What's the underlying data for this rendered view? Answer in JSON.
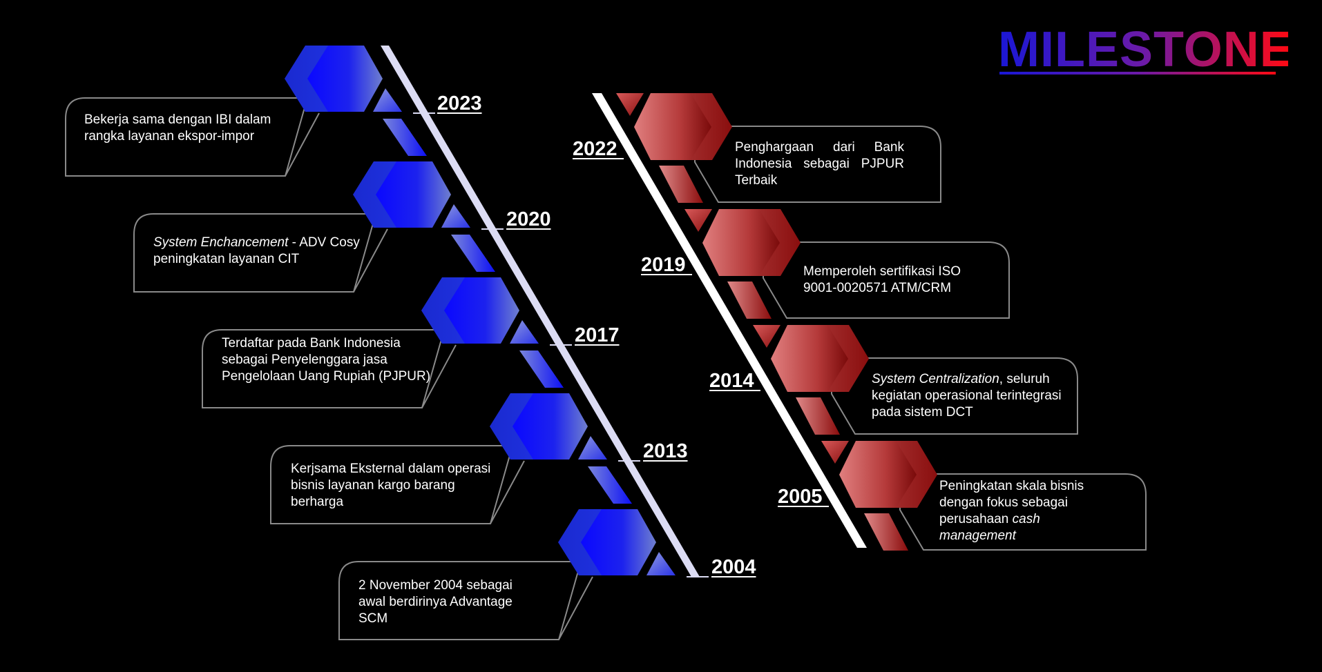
{
  "title": "MILESTONE",
  "colors": {
    "background": "#000000",
    "left_accent": "#1414f5",
    "right_accent": "#8b0d0d",
    "title_gradient": [
      "#1a17d6",
      "#ff0a14"
    ],
    "box_border": "#8a8a8a"
  },
  "left_timeline": [
    {
      "year": "2023",
      "text": "Bekerja sama dengan IBI dalam rangka layanan ekspor-impor"
    },
    {
      "year": "2020",
      "text_italic": "System Enchancement",
      "text": " - ADV Cosy peningkatan layanan CIT"
    },
    {
      "year": "2017",
      "text": "Terdaftar pada Bank Indonesia sebagai Penyelenggara jasa Pengelolaan Uang Rupiah (PJPUR)"
    },
    {
      "year": "2013",
      "text": "Kerjsama Eksternal dalam operasi bisnis layanan kargo barang berharga"
    },
    {
      "year": "2004",
      "text": "2 November 2004 sebagai awal berdirinya Advantage SCM"
    }
  ],
  "right_timeline": [
    {
      "year": "2022",
      "text": "Penghargaan dari Bank Indonesia sebagai PJPUR Terbaik"
    },
    {
      "year": "2019",
      "text": "Memperoleh sertifikasi ISO 9001-0020571 ATM/CRM"
    },
    {
      "year": "2014",
      "text_italic": "System Centralization",
      "text": ", seluruh kegiatan operasional terintegrasi pada sistem DCT"
    },
    {
      "year": "2005",
      "text": "Peningkatan skala bisnis dengan fokus sebagai perusahaan ",
      "text_italic_end": "cash management"
    }
  ]
}
